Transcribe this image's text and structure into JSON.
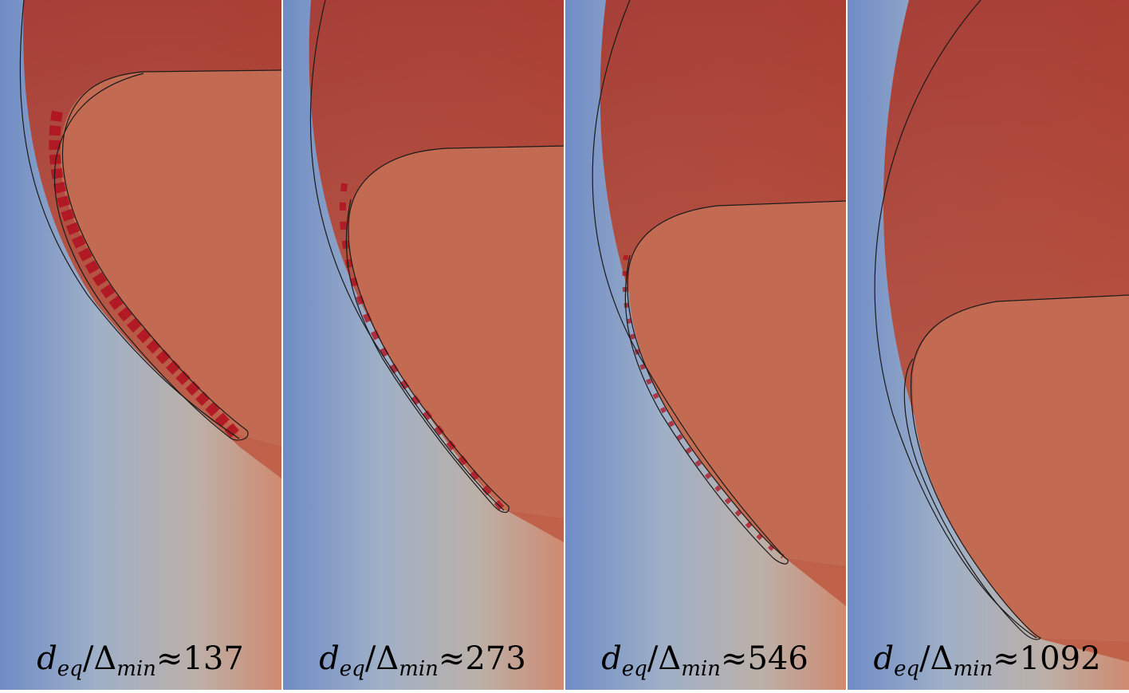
{
  "panels": [
    {
      "lhs": "d",
      "sub_lhs": "eq",
      "slash": "/",
      "delta": "Δ",
      "sub_delta": "min",
      "approx": "≈",
      "value": "137"
    },
    {
      "lhs": "d",
      "sub_lhs": "eq",
      "slash": "/",
      "delta": "Δ",
      "sub_delta": "min",
      "approx": "≈",
      "value": "273"
    },
    {
      "lhs": "d",
      "sub_lhs": "eq",
      "slash": "/",
      "delta": "Δ",
      "sub_delta": "min",
      "approx": "≈",
      "value": "546"
    },
    {
      "lhs": "d",
      "sub_lhs": "eq",
      "slash": "/",
      "delta": "Δ",
      "sub_delta": "min",
      "approx": "≈",
      "value": "1092"
    }
  ],
  "colors": {
    "blue_field": "#7f97c4",
    "gray_field": "#b3b3b3",
    "bubble_interior": "#c26b52",
    "dark_red_band": "#ab3d31",
    "interface_line": "#1a1a1a"
  }
}
